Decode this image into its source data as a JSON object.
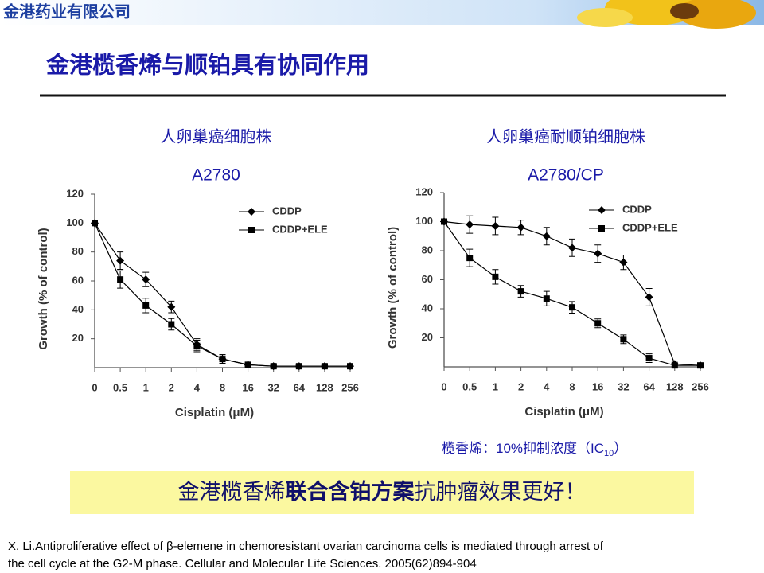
{
  "header": {
    "logo": "金港药业有限公司",
    "title": "金港榄香烯与顺铂具有协同作用"
  },
  "chart_data": [
    {
      "type": "line",
      "title": "人卵巢癌细胞株",
      "subtitle": "A2780",
      "x_label": "Cisplatin (μM)",
      "y_label": "Growth (% of control)",
      "categories": [
        "0",
        "0.5",
        "1",
        "2",
        "4",
        "8",
        "16",
        "32",
        "64",
        "128",
        "256"
      ],
      "ylim": [
        0,
        120
      ],
      "yticks": [
        20,
        40,
        60,
        80,
        100,
        120
      ],
      "legend": "upper right",
      "series": [
        {
          "name": "CDDP",
          "color": "#000000",
          "marker": "diamond",
          "values": [
            100,
            74,
            61,
            42,
            16,
            6,
            2,
            1,
            1,
            1,
            1
          ],
          "errors": [
            0,
            6,
            5,
            4,
            4,
            3,
            1,
            1,
            1,
            1,
            1
          ]
        },
        {
          "name": "CDDP+ELE",
          "color": "#000000",
          "marker": "square",
          "values": [
            100,
            61,
            43,
            30,
            15,
            6,
            2,
            1,
            1,
            1,
            1
          ],
          "errors": [
            0,
            6,
            5,
            4,
            4,
            3,
            1,
            1,
            1,
            1,
            1
          ]
        }
      ]
    },
    {
      "type": "line",
      "title": "人卵巢癌耐顺铂细胞株",
      "subtitle": "A2780/CP",
      "x_label": "Cisplatin (μM)",
      "y_label": "Growth (% of control)",
      "categories": [
        "0",
        "0.5",
        "1",
        "2",
        "4",
        "8",
        "16",
        "32",
        "64",
        "128",
        "256"
      ],
      "ylim": [
        0,
        120
      ],
      "yticks": [
        20,
        40,
        60,
        80,
        100,
        120
      ],
      "legend": "upper right",
      "series": [
        {
          "name": "CDDP",
          "color": "#000000",
          "marker": "diamond",
          "values": [
            100,
            98,
            97,
            96,
            90,
            82,
            78,
            72,
            48,
            2,
            1
          ],
          "errors": [
            0,
            6,
            6,
            5,
            6,
            6,
            6,
            5,
            6,
            2,
            1
          ]
        },
        {
          "name": "CDDP+ELE",
          "color": "#000000",
          "marker": "square",
          "values": [
            100,
            75,
            62,
            52,
            47,
            41,
            30,
            19,
            6,
            1,
            1
          ],
          "errors": [
            0,
            6,
            5,
            4,
            5,
            4,
            3,
            3,
            3,
            1,
            1
          ]
        }
      ]
    }
  ],
  "note": {
    "text": "榄香烯：10%抑制浓度（IC",
    "subscript": "10",
    "end": "）"
  },
  "highlight": {
    "before": "金港榄香烯",
    "bold": "联合含铂方案",
    "after": "抗肿瘤效果更好！"
  },
  "citation": [
    "X. Li.Antiproliferative effect of β-elemene in chemoresistant ovarian carcinoma cells is mediated through arrest of",
    "the cell cycle at the G2-M phase. Cellular and Molecular Life Sciences. 2005(62)894-904"
  ]
}
